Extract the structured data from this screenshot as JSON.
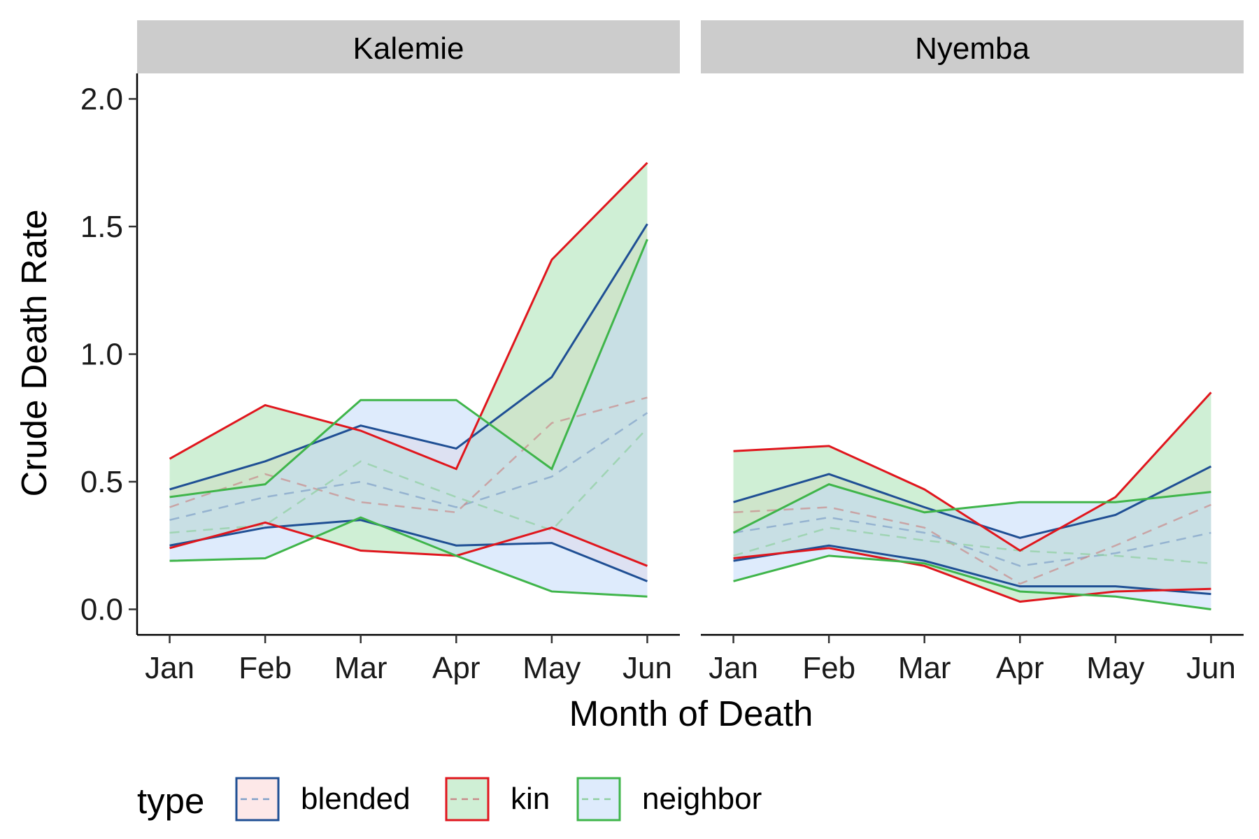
{
  "chart_data": {
    "type": "area",
    "xlabel": "Month of Death",
    "ylabel": "Crude Death Rate",
    "x": [
      "Jan",
      "Feb",
      "Mar",
      "Apr",
      "May",
      "Jun"
    ],
    "ylim": [
      -0.1,
      2.1
    ],
    "yticks": [
      "0.0",
      "0.5",
      "1.0",
      "1.5",
      "2.0"
    ],
    "grid": false,
    "legend": {
      "title": "type",
      "placement": "bottom",
      "entries": [
        "blended",
        "kin",
        "neighbor"
      ]
    },
    "colors": {
      "blended": {
        "fill": "#fbd5d5",
        "line": "#1f4f94",
        "mid": "#7fa0c8"
      },
      "kin": {
        "fill": "#a7e2b3",
        "line": "#e0161d",
        "mid": "#c98a8a"
      },
      "neighbor": {
        "fill": "#c3dafa",
        "line": "#3fb54a",
        "mid": "#8fcf9f"
      }
    },
    "panels": [
      {
        "title": "Kalemie",
        "series": [
          {
            "name": "blended",
            "upper": [
              0.47,
              0.58,
              0.72,
              0.63,
              0.91,
              1.51
            ],
            "mid": [
              0.35,
              0.44,
              0.5,
              0.4,
              0.52,
              0.77
            ],
            "lower": [
              0.25,
              0.32,
              0.35,
              0.25,
              0.26,
              0.11
            ]
          },
          {
            "name": "kin",
            "upper": [
              0.59,
              0.8,
              0.7,
              0.55,
              1.37,
              1.75
            ],
            "mid": [
              0.4,
              0.53,
              0.42,
              0.38,
              0.73,
              0.83
            ],
            "lower": [
              0.24,
              0.34,
              0.23,
              0.21,
              0.32,
              0.17
            ]
          },
          {
            "name": "neighbor",
            "upper": [
              0.44,
              0.49,
              0.82,
              0.82,
              0.55,
              1.45
            ],
            "mid": [
              0.3,
              0.33,
              0.58,
              0.44,
              0.31,
              0.71
            ],
            "lower": [
              0.19,
              0.2,
              0.36,
              0.21,
              0.07,
              0.05
            ]
          }
        ]
      },
      {
        "title": "Nyemba",
        "series": [
          {
            "name": "blended",
            "upper": [
              0.42,
              0.53,
              0.4,
              0.28,
              0.37,
              0.56
            ],
            "mid": [
              0.3,
              0.36,
              0.3,
              0.17,
              0.22,
              0.3
            ],
            "lower": [
              0.19,
              0.25,
              0.19,
              0.09,
              0.09,
              0.06
            ]
          },
          {
            "name": "kin",
            "upper": [
              0.62,
              0.64,
              0.47,
              0.23,
              0.44,
              0.85
            ],
            "mid": [
              0.38,
              0.4,
              0.32,
              0.1,
              0.25,
              0.41
            ],
            "lower": [
              0.2,
              0.24,
              0.17,
              0.03,
              0.07,
              0.08
            ]
          },
          {
            "name": "neighbor",
            "upper": [
              0.3,
              0.49,
              0.38,
              0.42,
              0.42,
              0.46
            ],
            "mid": [
              0.21,
              0.32,
              0.27,
              0.23,
              0.21,
              0.18
            ],
            "lower": [
              0.11,
              0.21,
              0.18,
              0.07,
              0.05,
              0.0
            ]
          }
        ]
      }
    ]
  }
}
